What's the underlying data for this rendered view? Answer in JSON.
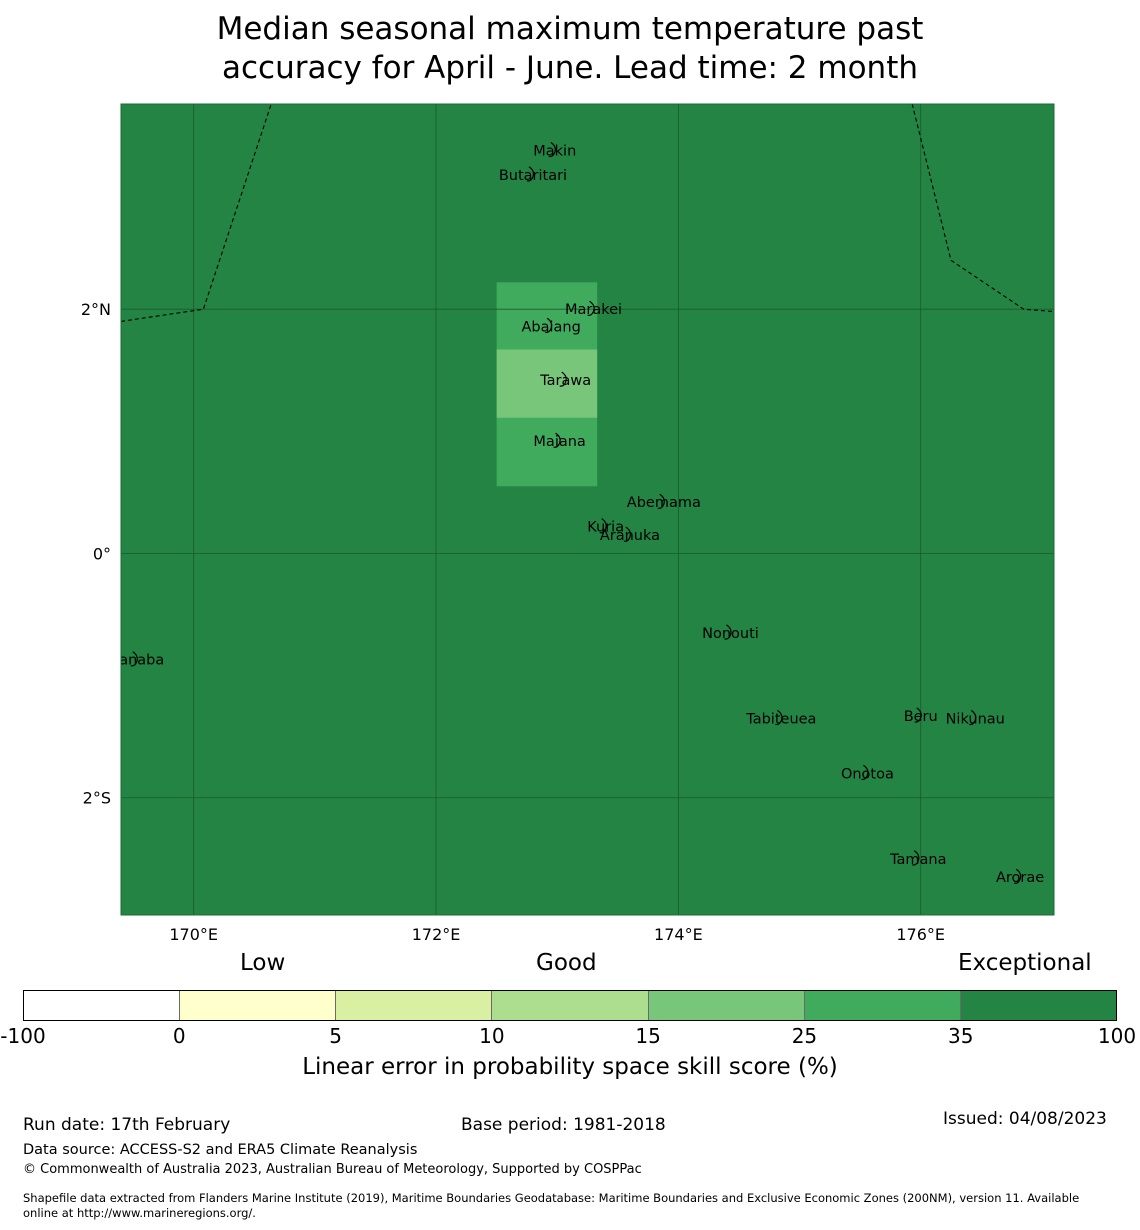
{
  "title_line1": "Median seasonal maximum temperature past",
  "title_line2": "accuracy for April - June. Lead time: 2 month",
  "map": {
    "lon_range": [
      169.4,
      177.1
    ],
    "lat_range": [
      -2.96,
      3.68
    ],
    "background_color": "#238443",
    "lon_ticks": [
      {
        "value": 170,
        "label": "170°E"
      },
      {
        "value": 172,
        "label": "172°E"
      },
      {
        "value": 174,
        "label": "174°E"
      },
      {
        "value": 176,
        "label": "176°E"
      }
    ],
    "lat_ticks": [
      {
        "value": 2,
        "label": "2°N"
      },
      {
        "value": 0,
        "label": "0°"
      },
      {
        "value": -2,
        "label": "2°S"
      }
    ],
    "cells": [
      {
        "lon0": 172.5,
        "lon1": 173.33,
        "lat0": 1.67,
        "lat1": 2.22,
        "color": "#41ab5d"
      },
      {
        "lon0": 172.5,
        "lon1": 173.33,
        "lat0": 1.11,
        "lat1": 1.67,
        "color": "#78c679"
      },
      {
        "lon0": 172.5,
        "lon1": 173.33,
        "lat0": 0.55,
        "lat1": 1.11,
        "color": "#41ab5d"
      }
    ],
    "boundaries": [
      [
        [
          169.4,
          1.9
        ],
        [
          170.08,
          2.0
        ],
        [
          170.64,
          3.68
        ]
      ],
      [
        [
          175.93,
          3.68
        ],
        [
          176.25,
          2.4
        ],
        [
          176.85,
          2.0
        ],
        [
          177.1,
          1.98
        ]
      ]
    ],
    "islands": [
      {
        "name": "Makin",
        "lon": 172.98,
        "lat": 3.3
      },
      {
        "name": "Butaritari",
        "lon": 172.8,
        "lat": 3.1
      },
      {
        "name": "Marakei",
        "lon": 173.3,
        "lat": 2.0
      },
      {
        "name": "Abaiang",
        "lon": 172.95,
        "lat": 1.86
      },
      {
        "name": "Tarawa",
        "lon": 173.07,
        "lat": 1.42
      },
      {
        "name": "Maiana",
        "lon": 173.02,
        "lat": 0.92
      },
      {
        "name": "Abemama",
        "lon": 173.88,
        "lat": 0.42
      },
      {
        "name": "Kuria",
        "lon": 173.4,
        "lat": 0.22
      },
      {
        "name": "Aranuka",
        "lon": 173.6,
        "lat": 0.15
      },
      {
        "name": "Nonouti",
        "lon": 174.43,
        "lat": -0.65
      },
      {
        "name": "Banaba",
        "lon": 169.53,
        "lat": -0.87
      },
      {
        "name": "Tabiteuea",
        "lon": 174.85,
        "lat": -1.35
      },
      {
        "name": "Beru",
        "lon": 176.0,
        "lat": -1.33
      },
      {
        "name": "Nikunau",
        "lon": 176.45,
        "lat": -1.35
      },
      {
        "name": "Onotoa",
        "lon": 175.56,
        "lat": -1.8
      },
      {
        "name": "Tamana",
        "lon": 175.98,
        "lat": -2.5
      },
      {
        "name": "Arorae",
        "lon": 176.82,
        "lat": -2.65
      }
    ]
  },
  "legend": {
    "categories": [
      "Low",
      "Good",
      "Exceptional"
    ],
    "colorbar": [
      {
        "from": -100,
        "to": 0,
        "color": "#ffffff"
      },
      {
        "from": 0,
        "to": 5,
        "color": "#ffffcc"
      },
      {
        "from": 5,
        "to": 10,
        "color": "#d9f0a3"
      },
      {
        "from": 10,
        "to": 15,
        "color": "#addd8e"
      },
      {
        "from": 15,
        "to": 25,
        "color": "#78c679"
      },
      {
        "from": 25,
        "to": 35,
        "color": "#41ab5d"
      },
      {
        "from": 35,
        "to": 100,
        "color": "#238443"
      }
    ],
    "tick_labels": [
      "-100",
      "0",
      "5",
      "10",
      "15",
      "25",
      "35",
      "100"
    ],
    "title": "Linear error in probability space skill score (%)"
  },
  "footer": {
    "run_date": "Run date: 17th February",
    "base_period": "Base period: 1981-2018",
    "issued": "Issued: 04/08/2023",
    "data_source": "Data source: ACCESS-S2 and ERA5 Climate Reanalysis",
    "copyright": "© Commonwealth of Australia 2023, Australian Bureau of Meteorology, Supported by COSPPac",
    "shapefile_line1": "Shapefile data extracted from Flanders Marine Institute (2019), Maritime Boundaries Geodatabase: Maritime Boundaries and Exclusive Economic Zones (200NM), version 11. Available",
    "shapefile_line2": "online at http://www.marineregions.org/."
  }
}
